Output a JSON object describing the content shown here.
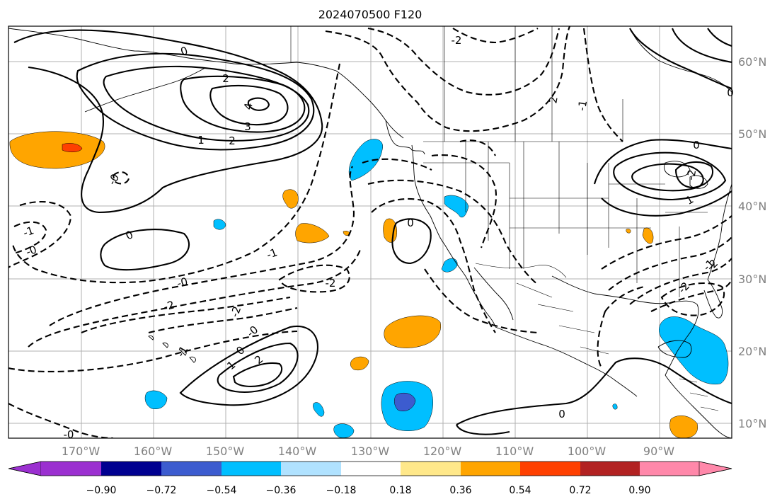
{
  "title": "2024070500 F120",
  "map": {
    "lon_range": [
      -180,
      -80
    ],
    "lat_range": [
      8,
      65
    ],
    "lon_ticks": [
      "170°W",
      "160°W",
      "150°W",
      "140°W",
      "130°W",
      "120°W",
      "110°W",
      "100°W",
      "90°W"
    ],
    "lat_ticks": [
      "60°N",
      "50°N",
      "40°N",
      "30°N",
      "20°N",
      "10°N"
    ],
    "contour_labels": [
      {
        "text": "0"
      },
      {
        "text": "2"
      },
      {
        "text": "4"
      },
      {
        "text": "3"
      },
      {
        "text": "2"
      },
      {
        "text": "1"
      },
      {
        "text": "-2"
      },
      {
        "text": "2"
      },
      {
        "text": "-1"
      },
      {
        "text": "-0"
      },
      {
        "text": "0"
      },
      {
        "text": "-0"
      },
      {
        "text": "-1"
      },
      {
        "text": "-2"
      },
      {
        "text": "-2"
      },
      {
        "text": "-2"
      },
      {
        "text": "-0"
      },
      {
        "text": "-1"
      },
      {
        "text": "0"
      },
      {
        "text": "1"
      },
      {
        "text": "2"
      },
      {
        "text": "0"
      },
      {
        "text": "-0"
      },
      {
        "text": "0"
      },
      {
        "text": "-2"
      },
      {
        "text": "-1"
      },
      {
        "text": "0"
      },
      {
        "text": "1"
      },
      {
        "text": "-2"
      },
      {
        "text": "0"
      },
      {
        "text": "-0"
      },
      {
        "text": "-1"
      },
      {
        "text": "-2"
      }
    ]
  },
  "colorbar": {
    "labels": [
      "−0.90",
      "−0.72",
      "−0.54",
      "−0.36",
      "−0.18",
      "0.18",
      "0.36",
      "0.54",
      "0.72",
      "0.90"
    ],
    "colors": [
      "#9b30d0",
      "#000090",
      "#3c5ccf",
      "#00bfff",
      "#b0e2ff",
      "#ffffff",
      "#ffe88a",
      "#ffa500",
      "#ff4000",
      "#b22222",
      "#ff88aa"
    ]
  }
}
